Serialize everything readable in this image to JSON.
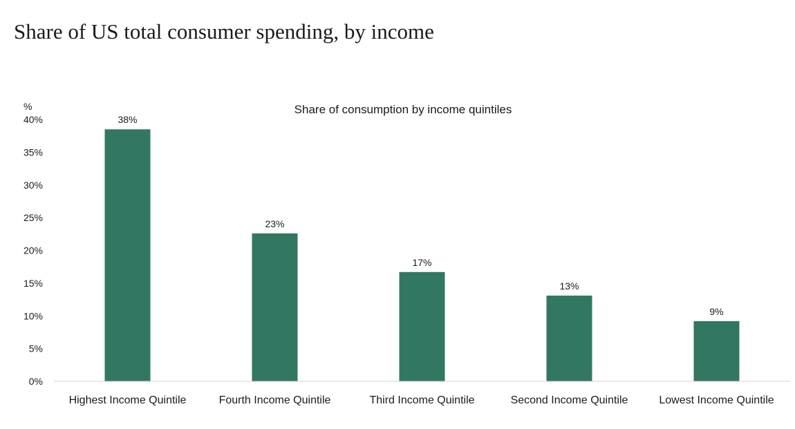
{
  "page": {
    "title": "Share of US total consumer spending, by income"
  },
  "chart_data": {
    "type": "bar",
    "title": "Share of consumption by income quintiles",
    "ylabel": "%",
    "xlabel": "",
    "categories": [
      "Highest Income Quintile",
      "Fourth Income Quintile",
      "Third Income Quintile",
      "Second Income Quintile",
      "Lowest Income Quintile"
    ],
    "values": [
      38.5,
      22.6,
      16.7,
      13.1,
      9.2
    ],
    "data_labels": [
      "38%",
      "23%",
      "17%",
      "13%",
      "9%"
    ],
    "ylim": [
      0,
      40
    ],
    "yticks": [
      0,
      5,
      10,
      15,
      20,
      25,
      30,
      35,
      40
    ],
    "ytick_labels": [
      "0%",
      "5%",
      "10%",
      "15%",
      "20%",
      "25%",
      "30%",
      "35%",
      "40%"
    ],
    "grid": false,
    "legend": "none",
    "colors": {
      "bar": "#327762",
      "axis": "#d0d0d0"
    }
  }
}
